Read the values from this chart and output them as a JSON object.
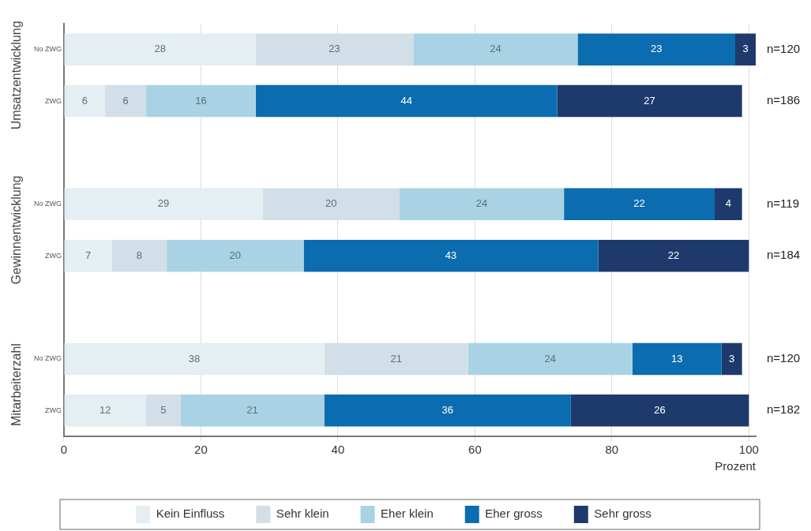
{
  "chart_data": {
    "type": "bar",
    "orientation": "horizontal",
    "stacked": true,
    "data_labels": true,
    "grid": "x",
    "legend": "bottom",
    "xlabel": "Prozent",
    "xlim": [
      0,
      101
    ],
    "xticks": [
      0,
      20,
      40,
      60,
      80,
      100
    ],
    "categories": [
      "No ZWG",
      "ZWG",
      null,
      "No ZWG",
      "ZWG",
      null,
      "No ZWG",
      "ZWG"
    ],
    "series": [
      {
        "name": "Kein Einfluss",
        "color": "#e4eef3",
        "values": [
          28,
          6,
          null,
          29,
          7,
          null,
          38,
          12
        ]
      },
      {
        "name": "Sehr klein",
        "color": "#d2dfe8",
        "values": [
          23,
          6,
          null,
          20,
          8,
          null,
          21,
          5
        ]
      },
      {
        "name": "Eher klein",
        "color": "#a9d3e4",
        "values": [
          24,
          16,
          null,
          24,
          20,
          null,
          24,
          21
        ]
      },
      {
        "name": "Eher gross",
        "color": "#0b6cb0",
        "values": [
          23,
          44,
          null,
          22,
          43,
          null,
          13,
          36
        ]
      },
      {
        "name": "Sehr gross",
        "color": "#1e3a6c",
        "values": [
          3,
          27,
          null,
          4,
          22,
          null,
          3,
          26
        ]
      }
    ],
    "annotations": [
      "Umsatzentwicklung",
      "Gewinnentwicklung",
      "Mitarbeiterzahl",
      "n=120",
      "n=186",
      "n=119",
      "n=184",
      "n=120",
      "n=182"
    ]
  }
}
